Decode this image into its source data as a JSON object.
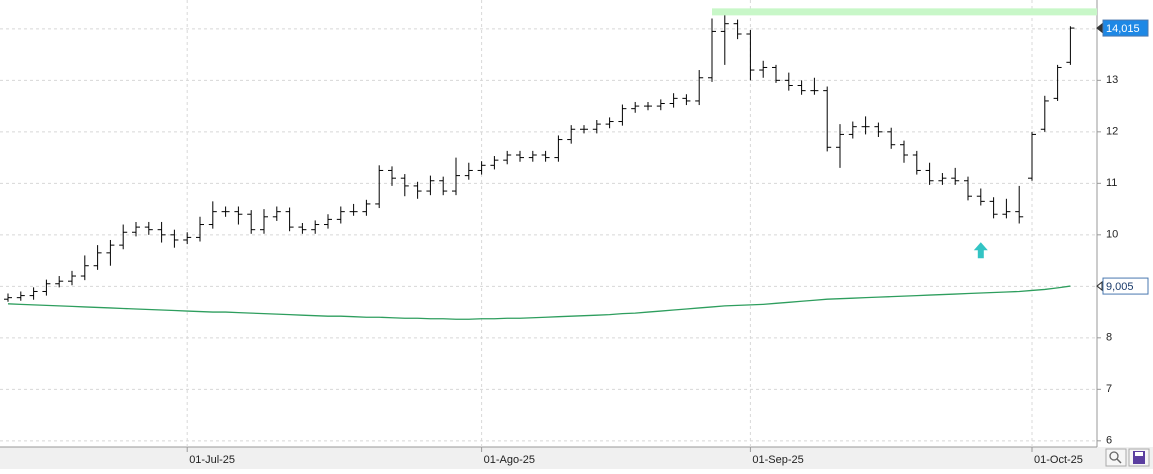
{
  "chart_data": {
    "type": "ohlc",
    "categories": [
      null,
      null,
      null,
      null,
      null,
      null,
      null,
      null,
      null,
      null,
      null,
      null,
      null,
      null,
      "01-Jul-25",
      null,
      null,
      null,
      null,
      null,
      null,
      null,
      null,
      null,
      null,
      null,
      null,
      null,
      null,
      null,
      null,
      null,
      null,
      null,
      null,
      null,
      null,
      "01-Ago-25",
      null,
      null,
      null,
      null,
      null,
      null,
      null,
      null,
      null,
      null,
      null,
      null,
      null,
      null,
      null,
      null,
      null,
      null,
      null,
      null,
      "01-Sep-25",
      null,
      null,
      null,
      null,
      null,
      null,
      null,
      null,
      null,
      null,
      null,
      null,
      null,
      null,
      null,
      null,
      null,
      null,
      null,
      null,
      null,
      "01-Oct-25",
      null,
      null,
      null
    ],
    "series": [
      {
        "type": "ohlc",
        "color": "#000000",
        "open": [
          8.75,
          8.78,
          8.82,
          8.9,
          9.05,
          9.1,
          9.2,
          9.4,
          9.65,
          9.8,
          10.05,
          10.15,
          10.1,
          10.0,
          9.9,
          9.95,
          10.2,
          10.45,
          10.45,
          10.4,
          10.1,
          10.35,
          10.45,
          10.15,
          10.1,
          10.2,
          10.3,
          10.45,
          10.45,
          10.6,
          11.25,
          11.1,
          10.95,
          10.85,
          11.05,
          10.85,
          11.15,
          11.25,
          11.35,
          11.45,
          11.55,
          11.5,
          11.55,
          11.5,
          11.85,
          12.05,
          12.05,
          12.15,
          12.2,
          12.45,
          12.5,
          12.5,
          12.55,
          12.65,
          12.6,
          13.05,
          13.95,
          14.1,
          13.9,
          13.2,
          13.25,
          13.0,
          12.9,
          12.8,
          12.8,
          11.7,
          11.95,
          12.1,
          12.1,
          12.0,
          11.75,
          11.55,
          11.25,
          11.05,
          11.1,
          11.05,
          10.75,
          10.65,
          10.4,
          10.45,
          11.1,
          12.05,
          12.65,
          13.35
        ],
        "high": [
          8.86,
          8.9,
          8.98,
          9.13,
          9.2,
          9.3,
          9.6,
          9.8,
          9.9,
          10.2,
          10.25,
          10.25,
          10.25,
          10.1,
          10.05,
          10.35,
          10.65,
          10.55,
          10.55,
          10.48,
          10.5,
          10.55,
          10.53,
          10.23,
          10.28,
          10.4,
          10.55,
          10.6,
          10.68,
          11.35,
          11.33,
          11.18,
          11.03,
          11.15,
          11.13,
          11.5,
          11.4,
          11.43,
          11.53,
          11.63,
          11.63,
          11.63,
          11.63,
          11.93,
          12.13,
          12.13,
          12.23,
          12.28,
          12.53,
          12.58,
          12.58,
          12.63,
          12.75,
          12.73,
          13.2,
          14.2,
          14.3,
          14.18,
          13.98,
          13.38,
          13.3,
          13.15,
          13.0,
          13.05,
          12.88,
          12.15,
          12.2,
          12.3,
          12.18,
          12.08,
          11.83,
          11.63,
          11.4,
          11.2,
          11.3,
          11.13,
          10.9,
          10.73,
          10.7,
          10.95,
          12.0,
          12.7,
          13.3,
          14.05
        ],
        "low": [
          8.7,
          8.72,
          8.74,
          8.82,
          8.98,
          9.02,
          9.12,
          9.32,
          9.4,
          9.72,
          9.97,
          10.0,
          9.85,
          9.75,
          9.82,
          9.87,
          10.12,
          10.35,
          10.2,
          10.02,
          10.02,
          10.27,
          10.07,
          10.02,
          10.02,
          10.12,
          10.22,
          10.37,
          10.37,
          10.52,
          10.95,
          10.75,
          10.7,
          10.77,
          10.77,
          10.77,
          11.07,
          11.17,
          11.27,
          11.37,
          11.42,
          11.42,
          11.42,
          11.42,
          11.77,
          11.97,
          11.97,
          12.07,
          12.12,
          12.37,
          12.42,
          12.42,
          12.47,
          12.52,
          12.52,
          12.97,
          13.3,
          13.8,
          13.0,
          13.05,
          12.95,
          12.8,
          12.72,
          12.72,
          11.62,
          11.3,
          11.87,
          11.95,
          11.9,
          11.67,
          11.4,
          11.17,
          10.97,
          10.97,
          10.97,
          10.67,
          10.57,
          10.32,
          10.32,
          10.22,
          11.05,
          12.0,
          12.6,
          13.3
        ],
        "close": [
          8.78,
          8.82,
          8.9,
          9.05,
          9.1,
          9.2,
          9.4,
          9.65,
          9.8,
          10.05,
          10.15,
          10.1,
          10.0,
          9.9,
          9.95,
          10.2,
          10.45,
          10.45,
          10.4,
          10.1,
          10.35,
          10.45,
          10.15,
          10.1,
          10.2,
          10.3,
          10.45,
          10.45,
          10.6,
          11.25,
          11.1,
          10.95,
          10.85,
          11.05,
          10.85,
          11.15,
          11.25,
          11.35,
          11.45,
          11.55,
          11.5,
          11.55,
          11.5,
          11.85,
          12.05,
          12.05,
          12.15,
          12.2,
          12.45,
          12.5,
          12.5,
          12.55,
          12.65,
          12.6,
          13.05,
          13.95,
          14.1,
          13.9,
          13.2,
          13.25,
          13.0,
          12.9,
          12.8,
          12.8,
          11.7,
          11.95,
          12.1,
          12.1,
          12.0,
          11.75,
          11.55,
          11.25,
          11.05,
          11.1,
          11.05,
          10.75,
          10.65,
          10.4,
          10.45,
          10.35,
          11.95,
          12.6,
          13.25,
          14.015
        ],
        "last_label": "14,015",
        "label_fill": "#1e88e5",
        "label_text": "#ffffff"
      },
      {
        "type": "line",
        "color": "#2e9e5e",
        "values": [
          8.66,
          8.65,
          8.64,
          8.63,
          8.62,
          8.61,
          8.6,
          8.59,
          8.58,
          8.57,
          8.56,
          8.55,
          8.54,
          8.53,
          8.52,
          8.51,
          8.5,
          8.5,
          8.49,
          8.48,
          8.47,
          8.46,
          8.45,
          8.44,
          8.43,
          8.42,
          8.42,
          8.41,
          8.4,
          8.4,
          8.39,
          8.38,
          8.38,
          8.37,
          8.37,
          8.36,
          8.36,
          8.37,
          8.37,
          8.38,
          8.38,
          8.39,
          8.4,
          8.41,
          8.42,
          8.43,
          8.44,
          8.45,
          8.47,
          8.48,
          8.5,
          8.52,
          8.54,
          8.56,
          8.58,
          8.6,
          8.62,
          8.63,
          8.64,
          8.65,
          8.67,
          8.69,
          8.71,
          8.73,
          8.75,
          8.76,
          8.77,
          8.78,
          8.79,
          8.8,
          8.81,
          8.82,
          8.83,
          8.84,
          8.85,
          8.86,
          8.87,
          8.88,
          8.89,
          8.9,
          8.92,
          8.94,
          8.97,
          9.005
        ],
        "last_label": "9,005",
        "label_fill": "#ffffff",
        "label_text": "#1a3a6a"
      }
    ],
    "annotations": [
      {
        "type": "hline",
        "value": 14.33,
        "from": 55,
        "color": "#c8f7c8"
      },
      {
        "type": "arrow-up",
        "x": 76,
        "y": 9.7,
        "color": "#33c4c4"
      }
    ],
    "ylim": [
      5.88,
      14.56
    ],
    "yticks": [
      6,
      7,
      8,
      9,
      10,
      11,
      12,
      13,
      14
    ],
    "grid": true
  }
}
